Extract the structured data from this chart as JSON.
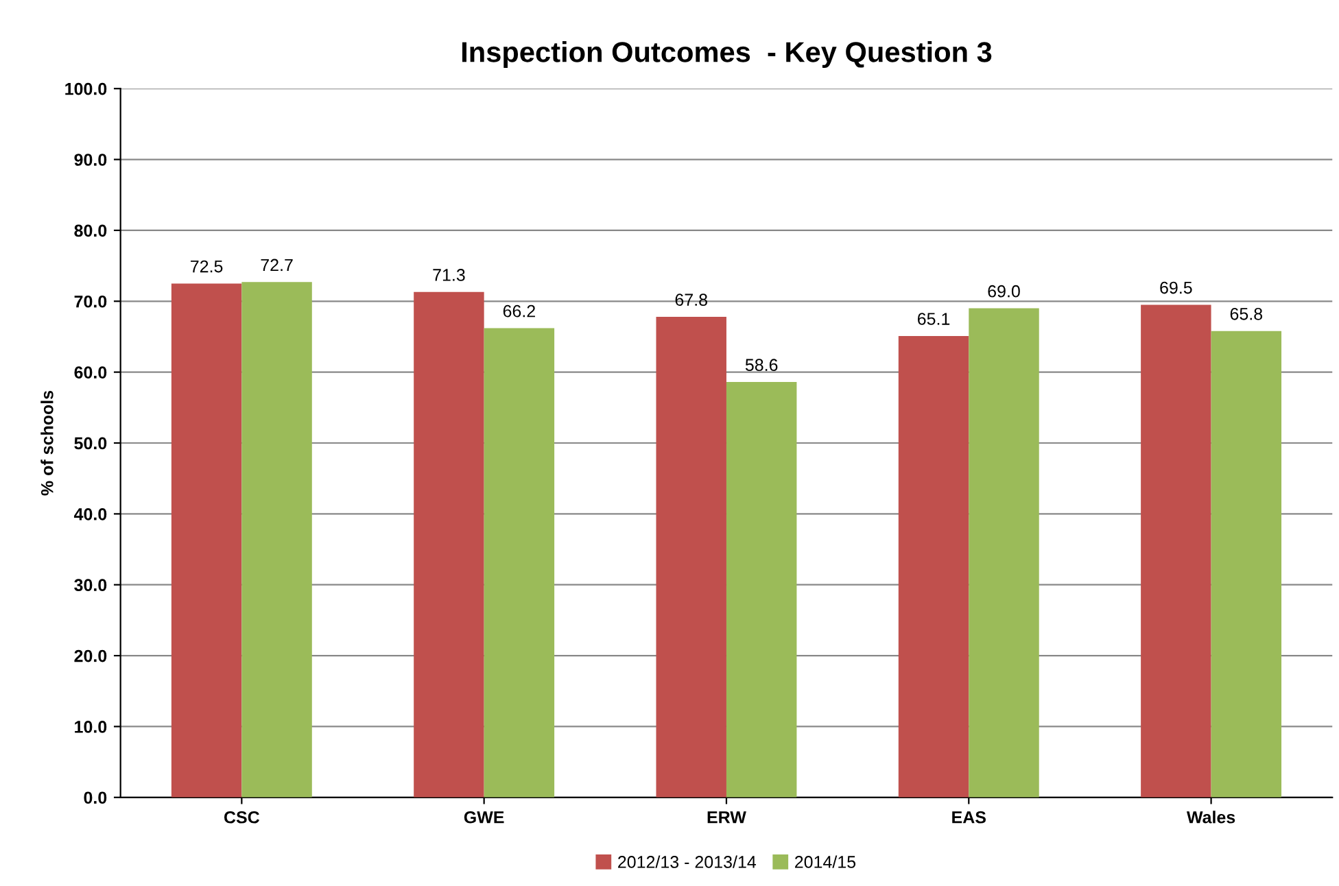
{
  "chart_data": {
    "type": "bar",
    "title": "Inspection Outcomes  - Key Question 3",
    "ylabel": "% of schools",
    "categories": [
      "CSC",
      "GWE",
      "ERW",
      "EAS",
      "Wales"
    ],
    "series": [
      {
        "name": "2012/13 - 2013/14",
        "color": "#c0504d",
        "values": [
          72.5,
          71.3,
          67.8,
          65.1,
          69.5
        ],
        "value_labels": [
          "72.5",
          "71.3",
          "67.8",
          "65.1",
          "69.5"
        ]
      },
      {
        "name": "2014/15",
        "color": "#9bbb59",
        "values": [
          72.7,
          66.2,
          58.6,
          69.0,
          65.8
        ],
        "value_labels": [
          "72.7",
          "66.2",
          "58.6",
          "69.0",
          "65.8"
        ]
      }
    ],
    "ylim": [
      0,
      100
    ],
    "yticks": [
      {
        "value": 0,
        "label": "0.0"
      },
      {
        "value": 10,
        "label": "10.0"
      },
      {
        "value": 20,
        "label": "20.0"
      },
      {
        "value": 30,
        "label": "30.0"
      },
      {
        "value": 40,
        "label": "40.0"
      },
      {
        "value": 50,
        "label": "50.0"
      },
      {
        "value": 60,
        "label": "60.0"
      },
      {
        "value": 70,
        "label": "70.0"
      },
      {
        "value": 80,
        "label": "80.0"
      },
      {
        "value": 90,
        "label": "90.0"
      },
      {
        "value": 100,
        "label": "100.0"
      }
    ],
    "grid": "y",
    "legend": "bottom"
  }
}
